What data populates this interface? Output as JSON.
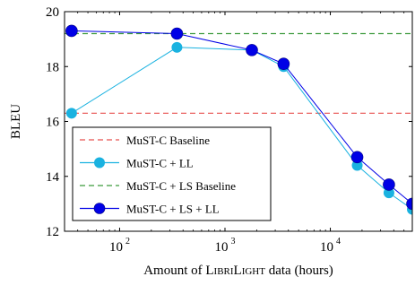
{
  "chart_data": {
    "type": "line",
    "xlabel": "Amount of LIBRILIGHT data (hours)",
    "ylabel": "BLEU",
    "x_scale": "log",
    "xlim": [
      30,
      60000
    ],
    "ylim": [
      12,
      20
    ],
    "x_ticks": [
      {
        "value": 100,
        "base": "10",
        "exp": "2"
      },
      {
        "value": 1000,
        "base": "10",
        "exp": "3"
      },
      {
        "value": 10000,
        "base": "10",
        "exp": "4"
      }
    ],
    "y_ticks": [
      12,
      14,
      16,
      18,
      20
    ],
    "grid": false,
    "legend_position": "bottom-left",
    "series": [
      {
        "name": "MuST-C Baseline",
        "style": "dashed",
        "color": "#e8514f",
        "marker": "none",
        "x": [
          30,
          60000
        ],
        "y": [
          16.3,
          16.3
        ]
      },
      {
        "name": "MuST-C + LL",
        "style": "solid",
        "color": "#1ab2e0",
        "marker": "circle",
        "x": [
          35,
          350,
          1800,
          3600,
          18000,
          36000,
          60000
        ],
        "y": [
          16.3,
          18.7,
          18.6,
          18.0,
          14.4,
          13.4,
          12.8
        ]
      },
      {
        "name": "MuST-C + LS Baseline",
        "style": "dashed",
        "color": "#3b9a3b",
        "marker": "none",
        "x": [
          30,
          60000
        ],
        "y": [
          19.2,
          19.2
        ]
      },
      {
        "name": "MuST-C + LS + LL",
        "style": "solid",
        "color": "#0000e6",
        "marker": "circle",
        "x": [
          35,
          350,
          1800,
          3600,
          18000,
          36000,
          60000
        ],
        "y": [
          19.3,
          19.2,
          18.6,
          18.1,
          14.7,
          13.7,
          13.0
        ]
      }
    ]
  }
}
